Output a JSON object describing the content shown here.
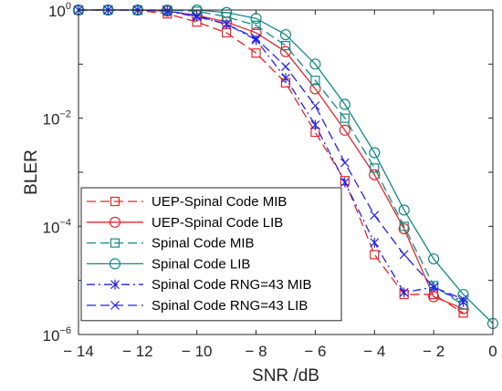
{
  "chart_data": {
    "type": "line",
    "title": "",
    "xlabel": "SNR /dB",
    "ylabel": "BLER",
    "xlim": [
      -14,
      0
    ],
    "ylim": [
      1e-06,
      1
    ],
    "yscale": "log",
    "grid": false,
    "legend_position": "bottom-left",
    "x_ticks": [
      {
        "value": -14,
        "label": "− 14"
      },
      {
        "value": -12,
        "label": "− 12"
      },
      {
        "value": -10,
        "label": "− 10"
      },
      {
        "value": -8,
        "label": "− 8"
      },
      {
        "value": -6,
        "label": "− 6"
      },
      {
        "value": -4,
        "label": "− 4"
      },
      {
        "value": -2,
        "label": "− 2"
      },
      {
        "value": 0,
        "label": "0"
      }
    ],
    "y_ticks": [
      {
        "value": 1,
        "base": "10",
        "exp": "0"
      },
      {
        "value": 0.01,
        "base": "10",
        "exp": "−2"
      },
      {
        "value": 0.0001,
        "base": "10",
        "exp": "−4"
      },
      {
        "value": 1e-06,
        "base": "10",
        "exp": "−6"
      }
    ],
    "series": [
      {
        "name": "UEP-Spinal Code MIB",
        "color": "#e8252a",
        "dash": "dash",
        "marker": "square",
        "x": [
          -14,
          -13,
          -12,
          -11,
          -10,
          -9,
          -8,
          -7,
          -6,
          -5,
          -4,
          -3,
          -2,
          -1
        ],
        "y": [
          1,
          1,
          0.99,
          0.85,
          0.6,
          0.38,
          0.16,
          0.045,
          0.0055,
          0.0007,
          3e-05,
          5.5e-06,
          5.5e-06,
          2.5e-06
        ]
      },
      {
        "name": "UEP-Spinal Code LIB",
        "color": "#e8252a",
        "dash": "solid",
        "marker": "circle",
        "x": [
          -14,
          -13,
          -12,
          -11,
          -10,
          -9,
          -8,
          -7,
          -6,
          -5,
          -4,
          -3,
          -2,
          -1
        ],
        "y": [
          1,
          1,
          1,
          0.95,
          0.8,
          0.6,
          0.38,
          0.17,
          0.035,
          0.006,
          0.0009,
          9e-05,
          5e-06,
          3e-06
        ]
      },
      {
        "name": "Spinal Code MIB",
        "color": "#138a86",
        "dash": "dash",
        "marker": "square",
        "x": [
          -14,
          -13,
          -12,
          -11,
          -10,
          -9,
          -8,
          -7,
          -6,
          -5,
          -4,
          -3,
          -2,
          -1
        ],
        "y": [
          1,
          1,
          1,
          1,
          0.95,
          0.75,
          0.52,
          0.22,
          0.05,
          0.01,
          0.0012,
          0.0001,
          8e-06,
          3.5e-06
        ]
      },
      {
        "name": "Spinal Code LIB",
        "color": "#138a86",
        "dash": "solid",
        "marker": "circle",
        "x": [
          -14,
          -13,
          -12,
          -11,
          -10,
          -9,
          -8,
          -7,
          -6,
          -5,
          -4,
          -3,
          -2,
          -1,
          0
        ],
        "y": [
          1,
          1,
          1,
          1,
          1,
          0.9,
          0.7,
          0.35,
          0.1,
          0.018,
          0.0023,
          0.0002,
          2.5e-05,
          5.5e-06,
          1.6e-06
        ]
      },
      {
        "name": "Spinal Code RNG=43 MIB",
        "color": "#2424e6",
        "dash": "dashdot",
        "marker": "star",
        "x": [
          -14,
          -13,
          -12,
          -11,
          -10,
          -9,
          -8,
          -7,
          -6,
          -5,
          -4,
          -3,
          -2,
          -1
        ],
        "y": [
          1,
          1,
          1,
          0.95,
          0.75,
          0.55,
          0.28,
          0.055,
          0.0075,
          0.00065,
          5e-05,
          6e-06,
          7.5e-06,
          4e-06
        ]
      },
      {
        "name": "Spinal Code RNG=43 LIB",
        "color": "#2424e6",
        "dash": "dash",
        "marker": "x",
        "x": [
          -14,
          -13,
          -12,
          -11,
          -10,
          -9,
          -8,
          -7,
          -6,
          -5,
          -4,
          -3,
          -2,
          -1
        ],
        "y": [
          1,
          1,
          1,
          0.97,
          0.78,
          0.55,
          0.3,
          0.09,
          0.017,
          0.0015,
          0.00016,
          3e-05,
          7.5e-06,
          4.5e-06
        ]
      }
    ]
  }
}
